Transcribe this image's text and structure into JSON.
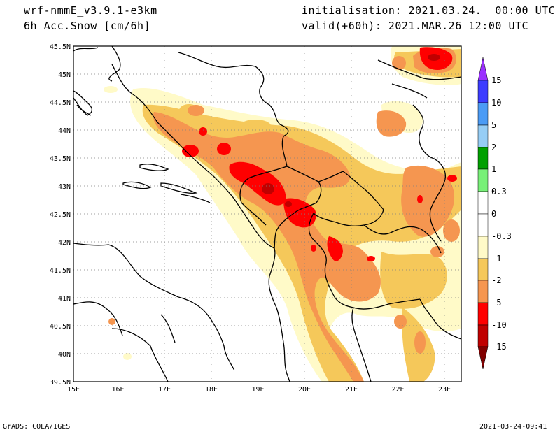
{
  "header": {
    "model": "wrf-nmmE_v3.9.1-e3km",
    "field": "6h Acc.Snow [cm/6h]",
    "init": "initialisation: 2021.03.24.  00:00 UTC",
    "valid": "valid(+60h): 2021.MAR.26 12:00 UTC"
  },
  "footer": {
    "left": "GrADS: COLA/IGES",
    "right": "2021-03-24-09:41"
  },
  "axes": {
    "lat_labels": [
      "45.5N",
      "45N",
      "44.5N",
      "44N",
      "43.5N",
      "43N",
      "42.5N",
      "42N",
      "41.5N",
      "41N",
      "40.5N",
      "40N",
      "39.5N"
    ],
    "lon_labels": [
      "15E",
      "16E",
      "17E",
      "18E",
      "19E",
      "20E",
      "21E",
      "22E",
      "23E"
    ]
  },
  "colorbar": {
    "labels": [
      "15",
      "10",
      "5",
      "2",
      "1",
      "0.3",
      "0",
      "-0.3",
      "-1",
      "-2",
      "-5",
      "-10",
      "-15"
    ],
    "colors": [
      "#9b30ff",
      "#3c3cff",
      "#4b9bf5",
      "#96cdf5",
      "#00a000",
      "#78f078",
      "#ffffff",
      "#fffac8",
      "#f5c85a",
      "#f59650",
      "#ff0000",
      "#c00000",
      "#800000"
    ]
  },
  "map": {
    "colors": {
      "light": "#fffac8",
      "yellow": "#f5c85a",
      "orange": "#f59650",
      "red": "#ff0000",
      "dark": "#c00000"
    }
  }
}
